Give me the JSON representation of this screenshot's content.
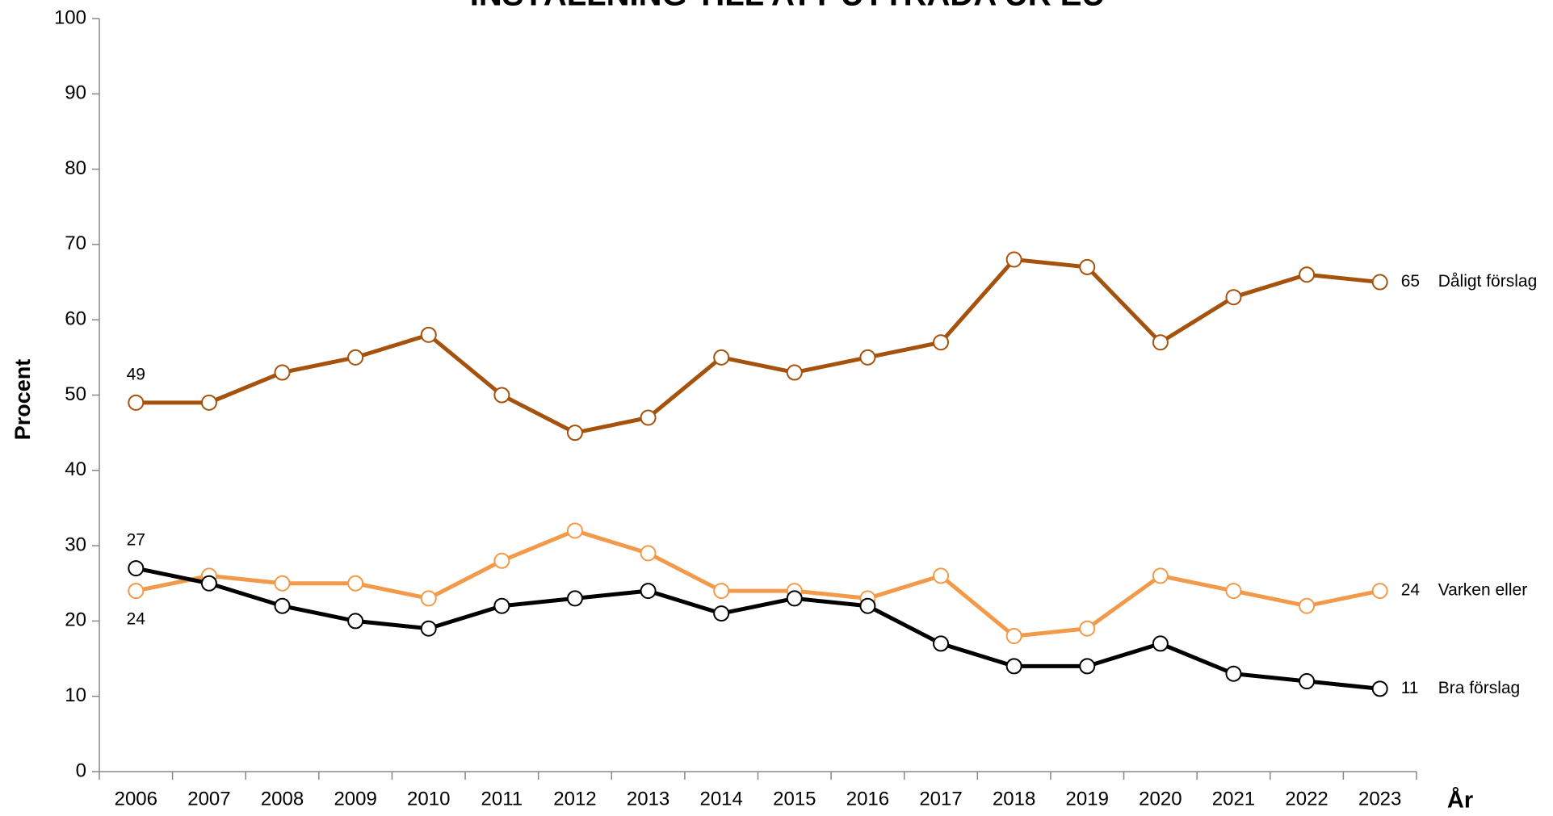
{
  "chart_data": {
    "type": "line",
    "title": "INSTÄLLNING TILL ATT UTTRÄDA UR EU",
    "y_label": "Procent",
    "x_label": "År",
    "categories": [
      "2006",
      "2007",
      "2008",
      "2009",
      "2010",
      "2011",
      "2012",
      "2013",
      "2014",
      "2015",
      "2016",
      "2017",
      "2018",
      "2019",
      "2020",
      "2021",
      "2022",
      "2023"
    ],
    "series": [
      {
        "name": "Dåligt förslag",
        "color": "#a5520d",
        "values": [
          49,
          49,
          53,
          55,
          58,
          50,
          45,
          47,
          55,
          53,
          55,
          57,
          68,
          67,
          57,
          63,
          66,
          65
        ]
      },
      {
        "name": "Varken eller",
        "color": "#f39a4a",
        "values": [
          24,
          26,
          25,
          25,
          23,
          28,
          32,
          29,
          24,
          24,
          23,
          26,
          18,
          19,
          26,
          24,
          22,
          24
        ]
      },
      {
        "name": "Bra förslag",
        "color": "#000000",
        "values": [
          27,
          25,
          22,
          20,
          19,
          22,
          23,
          24,
          21,
          23,
          22,
          17,
          14,
          14,
          17,
          13,
          12,
          11
        ]
      }
    ],
    "ylim": [
      0,
      100
    ],
    "yticks": [
      0,
      10,
      20,
      30,
      40,
      50,
      60,
      70,
      80,
      90,
      100
    ],
    "grid": false
  }
}
